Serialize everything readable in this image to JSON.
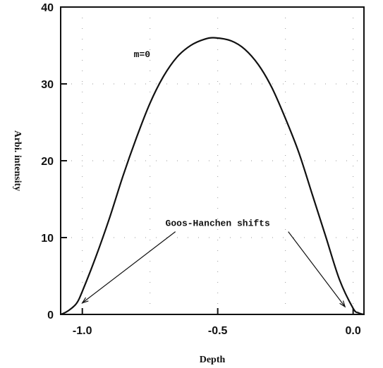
{
  "chart_data": {
    "type": "line",
    "title": "",
    "xlabel": "Depth",
    "ylabel": "Arbi. intensity",
    "xlim": [
      -1.08,
      0.04
    ],
    "ylim": [
      0,
      40
    ],
    "xticks": [
      -1.0,
      -0.5,
      0.0
    ],
    "xtick_labels": [
      "-1.0",
      "-0.5",
      "0.0"
    ],
    "yticks": [
      0,
      10,
      20,
      30,
      40
    ],
    "ytick_labels": [
      "0",
      "10",
      "20",
      "30",
      "40"
    ],
    "grid": true,
    "series": [
      {
        "x": [
          -1.08,
          -1.06,
          -1.04,
          -1.02,
          -1.0,
          -0.95,
          -0.9,
          -0.85,
          -0.8,
          -0.75,
          -0.7,
          -0.65,
          -0.6,
          -0.55,
          -0.51,
          -0.45,
          -0.4,
          -0.35,
          -0.3,
          -0.25,
          -0.2,
          -0.15,
          -0.1,
          -0.05,
          0.0,
          0.02,
          0.04
        ],
        "y": [
          0,
          0.3,
          0.8,
          1.5,
          3.0,
          7.5,
          12.5,
          18.0,
          23.0,
          27.5,
          31.0,
          33.5,
          35.0,
          35.8,
          36.0,
          35.6,
          34.5,
          32.5,
          29.5,
          25.5,
          21.0,
          15.5,
          10.0,
          4.5,
          0.8,
          0.2,
          0
        ]
      }
    ],
    "annotations": [
      {
        "text": "m=0",
        "x": -0.81,
        "y": 33.5
      },
      {
        "text": "Goos-Hanchen shifts",
        "x": -0.5,
        "y": 11.5,
        "arrows_to": [
          [
            -1.0,
            1.5
          ],
          [
            -0.03,
            1.0
          ]
        ]
      }
    ]
  }
}
